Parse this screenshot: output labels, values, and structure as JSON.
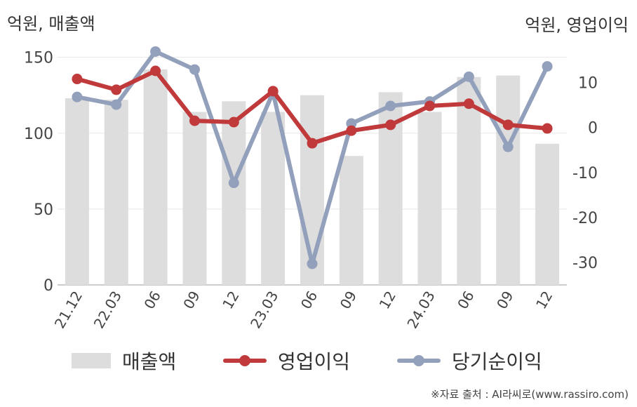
{
  "chart_data": {
    "type": "bar+line",
    "left_axis_unit": "억원, 매출액",
    "right_axis_unit": "억원, 영업이익",
    "categories": [
      "21.12",
      "22.03",
      "06",
      "09",
      "12",
      "23.03",
      "06",
      "09",
      "12",
      "24.03",
      "06",
      "09",
      "12"
    ],
    "y_left": {
      "range": [
        0,
        160
      ],
      "ticks": [
        "150",
        "100",
        "50",
        "0"
      ]
    },
    "y_right": {
      "range": [
        -35,
        19
      ],
      "ticks": [
        "10",
        "0",
        "-10",
        "-20",
        "-30"
      ]
    },
    "series": [
      {
        "name": "매출액",
        "type": "bar",
        "axis": "left",
        "color": "#dddddd",
        "values": [
          123,
          122,
          142,
          114,
          121,
          114,
          125,
          85,
          127,
          114,
          137,
          138,
          93
        ]
      },
      {
        "name": "영업이익",
        "type": "line",
        "axis": "right",
        "color": "#c0393b",
        "values": [
          10.8,
          8.4,
          12.6,
          1.5,
          1.2,
          8.1,
          -3.5,
          -0.7,
          0.6,
          4.8,
          5.3,
          0.6,
          -0.2
        ]
      },
      {
        "name": "당기순이익",
        "type": "line",
        "axis": "right",
        "color": "#93a0bb",
        "values": [
          6.8,
          5.1,
          16.9,
          12.9,
          -12.3,
          7.8,
          -30.3,
          0.9,
          4.8,
          5.8,
          11.3,
          -4.3,
          13.6
        ]
      }
    ],
    "grid": true,
    "legend_position": "bottom"
  },
  "source": "※자료 출처 : AI라씨로(www.rassiro.com)"
}
